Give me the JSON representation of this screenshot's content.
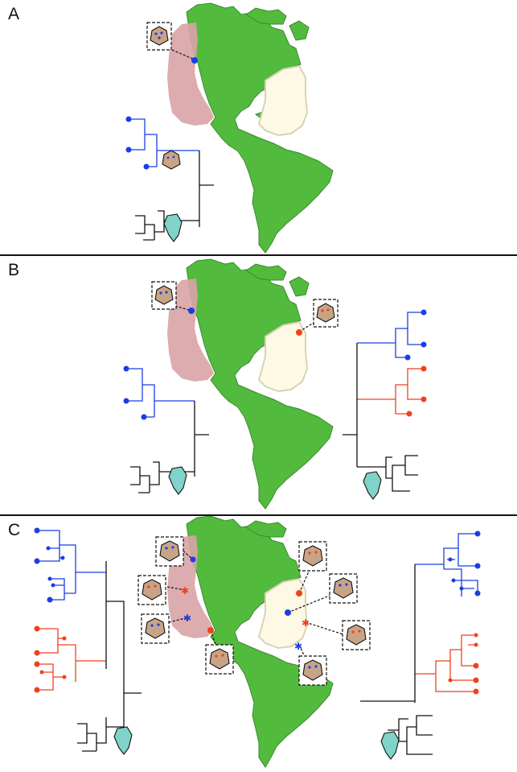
{
  "panels": [
    {
      "label": "A"
    },
    {
      "label": "B"
    },
    {
      "label": "C"
    }
  ],
  "colors": {
    "land": "#52bb3e",
    "land_stroke": "#3a8a2c",
    "pacific_region": "#d9a3a6",
    "atlantic_region": "#fdf9e4",
    "atlantic_stroke": "#d9d3b4",
    "pacific_lineage": "#1a3ee6",
    "atlantic_lineage": "#f0401c",
    "outgroup": "#111111",
    "coral": "#c8a486",
    "outgroup_cell": "#7fd3c8"
  },
  "icons": [
    "coral-polyp-icon",
    "dinoflagellate-icon",
    "collection-dot-icon",
    "collection-star-icon"
  ]
}
